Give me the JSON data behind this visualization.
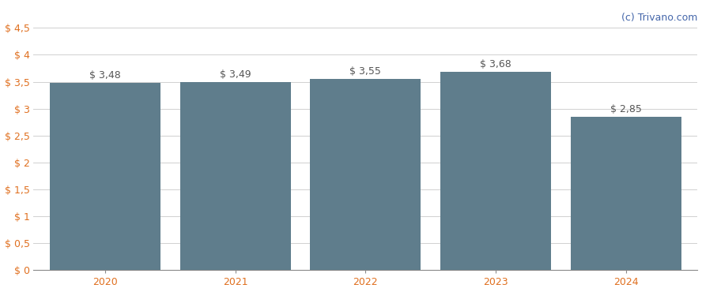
{
  "categories": [
    "2020",
    "2021",
    "2022",
    "2023",
    "2024"
  ],
  "values": [
    3.48,
    3.49,
    3.55,
    3.68,
    2.85
  ],
  "bar_color": "#5f7d8c",
  "bar_width": 0.85,
  "ylim": [
    0,
    4.5
  ],
  "yticks": [
    0,
    0.5,
    1.0,
    1.5,
    2.0,
    2.5,
    3.0,
    3.5,
    4.0,
    4.5
  ],
  "ytick_labels": [
    "$ 0",
    "$ 0,5",
    "$ 1",
    "$ 1,5",
    "$ 2",
    "$ 2,5",
    "$ 3",
    "$ 3,5",
    "$ 4",
    "$ 4,5"
  ],
  "value_labels": [
    "$ 3,48",
    "$ 3,49",
    "$ 3,55",
    "$ 3,68",
    "$ 2,85"
  ],
  "background_color": "#ffffff",
  "grid_color": "#d0d0d0",
  "watermark": "(c) Trivano.com",
  "watermark_color": "#4466aa",
  "tick_color": "#e07020",
  "label_fontsize": 9.0,
  "tick_fontsize": 9.0,
  "watermark_fontsize": 9.0,
  "value_label_color": "#555555"
}
